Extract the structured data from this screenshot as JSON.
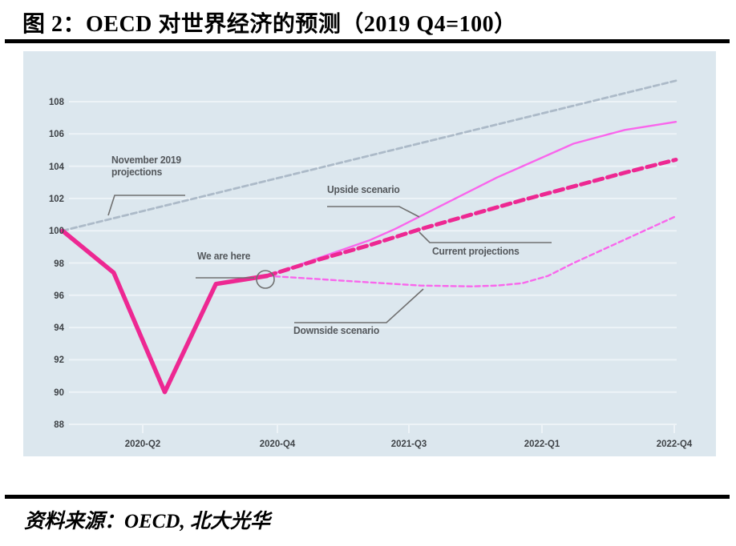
{
  "title": "图 2：OECD 对世界经济的预测（2019 Q4=100）",
  "source": "资料来源：OECD, 北大光华",
  "annotations": {
    "november": "November 2019\nprojections",
    "we_are_here": "We are here",
    "upside": "Upside scenario",
    "current": "Current projections",
    "downside": "Downside scenario"
  },
  "chart_data": {
    "type": "line",
    "title": "图 2：OECD 对世界经济的预测（2019 Q4=100）",
    "index_note": "2019 Q4 = 100",
    "x_base_quarter": "2019-Q4",
    "x_unit": "quarters since 2019-Q4",
    "x_tick_labels": [
      "2020-Q2",
      "2020-Q4",
      "2021-Q3",
      "2022-Q1",
      "2022-Q4"
    ],
    "y_ticks": [
      88,
      90,
      92,
      94,
      96,
      98,
      100,
      102,
      104,
      106,
      108
    ],
    "ylim": [
      87,
      110
    ],
    "grid": "horizontal-only",
    "legend": "none (labels via callout annotations)",
    "colors": {
      "background": "#dce7ee",
      "gridline": "#edf3f7",
      "deep_pink": "#ED2892",
      "light_magenta": "#F966EC",
      "projection_gray": "#ACBAC8",
      "callout_gray": "#707070"
    },
    "series": [
      {
        "id": "november-2019-projections",
        "annotation_label": "November 2019 projections",
        "color": "#ACBAC8",
        "width": 2.8,
        "dash": "7 4",
        "x": [
          0,
          12
        ],
        "values": [
          100,
          109.3
        ]
      },
      {
        "id": "downside-scenario",
        "annotation_label": "Downside scenario",
        "color": "#F966EC",
        "width": 2.4,
        "dash": "6 4",
        "x": [
          4,
          5,
          6,
          7,
          8,
          8.5,
          9,
          9.5,
          10,
          11,
          12
        ],
        "values": [
          97.2,
          97.0,
          96.8,
          96.6,
          96.55,
          96.6,
          96.75,
          97.2,
          98.0,
          99.45,
          100.9
        ]
      },
      {
        "id": "upside-scenario",
        "annotation_label": "Upside scenario",
        "color": "#F966EC",
        "width": 2.4,
        "dash": null,
        "x": [
          4,
          5,
          6,
          6.5,
          7,
          7.5,
          8,
          8.5,
          9,
          10,
          11,
          12
        ],
        "values": [
          97.2,
          98.3,
          99.4,
          100.1,
          100.9,
          101.7,
          102.5,
          103.3,
          104.0,
          105.4,
          106.25,
          106.75
        ]
      },
      {
        "id": "current-projections",
        "annotation_label": "Current projections",
        "color": "#ED2892",
        "width": 5,
        "dash": "11 6",
        "x": [
          4,
          5,
          6,
          7,
          8,
          9,
          10,
          11,
          12
        ],
        "values": [
          97.2,
          98.2,
          99.1,
          100.1,
          101.0,
          101.9,
          102.75,
          103.6,
          104.4
        ]
      },
      {
        "id": "historical-realized",
        "annotation_label": "We are here (end point)",
        "color": "#ED2892",
        "width": 5.5,
        "dash": null,
        "x": [
          0,
          1,
          2,
          3,
          4
        ],
        "values": [
          100,
          97.4,
          90.0,
          96.7,
          97.2
        ]
      }
    ]
  }
}
